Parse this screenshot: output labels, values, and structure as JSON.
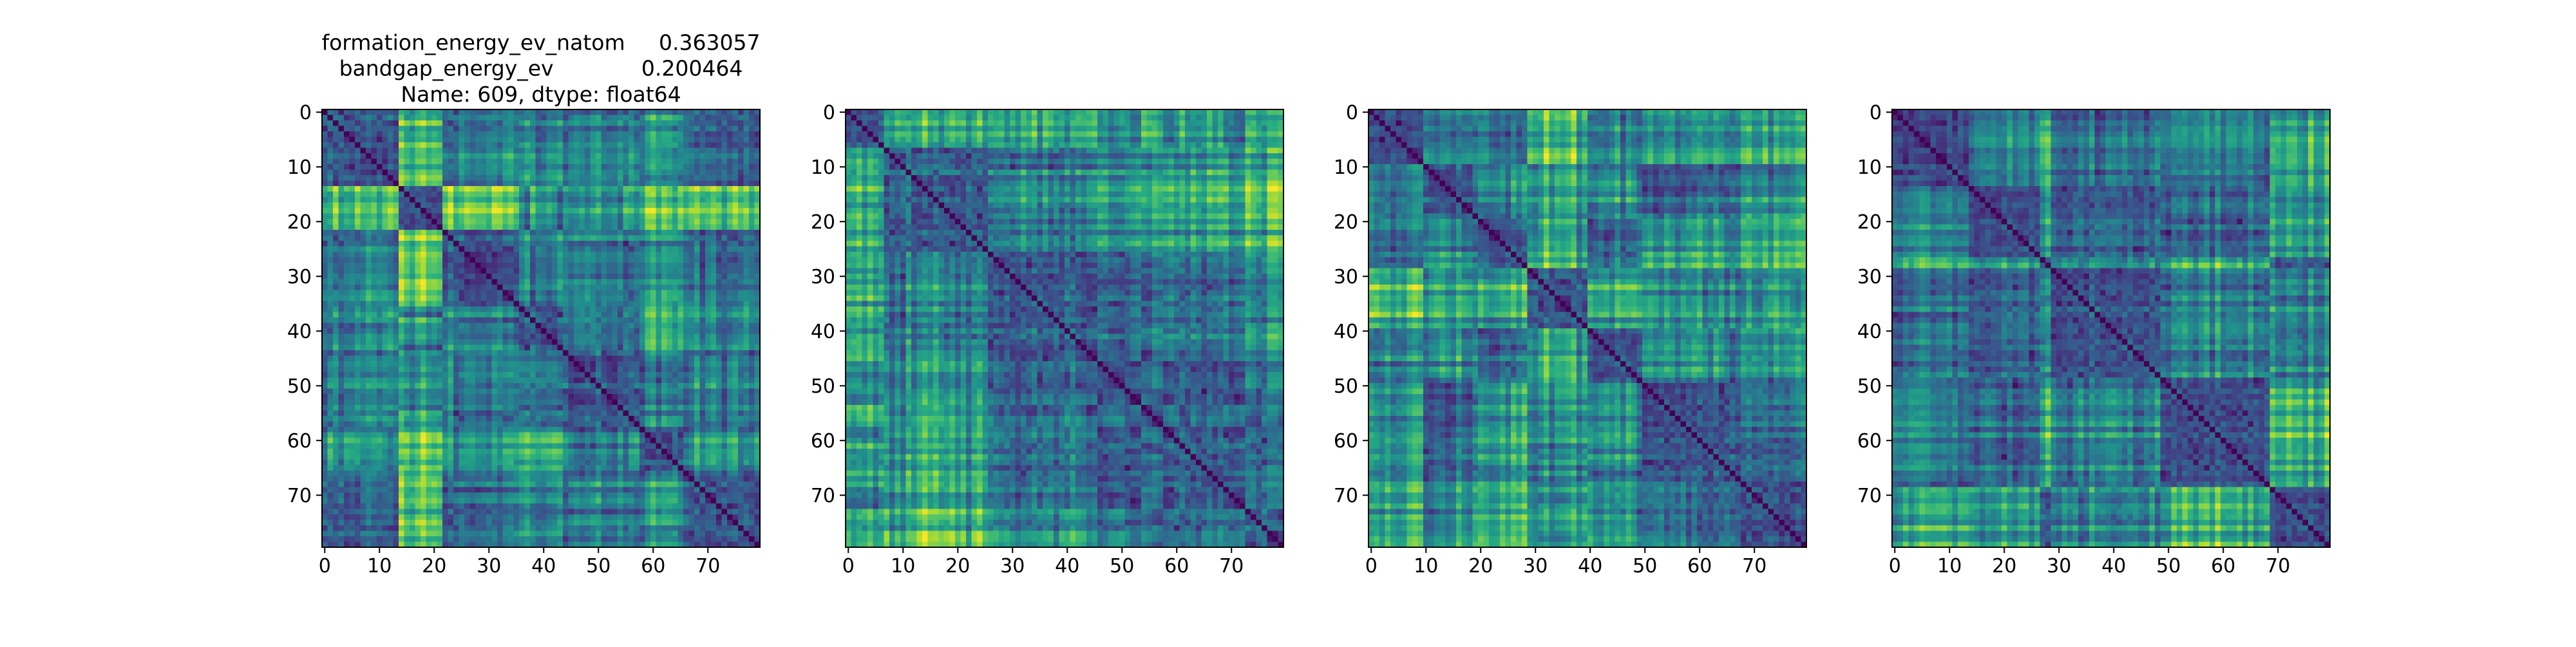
{
  "chart_data": [
    {
      "type": "heatmap",
      "title_lines": [
        "formation_energy_ev_natom     0.363057",
        "bandgap_energy_ev             0.200464",
        "Name: 609, dtype: float64"
      ],
      "rows": 80,
      "cols": 80,
      "xticks": [
        0,
        10,
        20,
        30,
        40,
        50,
        60,
        70
      ],
      "yticks": [
        0,
        10,
        20,
        30,
        40,
        50,
        60,
        70
      ],
      "colormap": "viridis",
      "diagonal_value": 0,
      "block_breaks": [
        14,
        22,
        36,
        44,
        58,
        66
      ],
      "seed": 11
    },
    {
      "type": "heatmap",
      "title_lines": [],
      "rows": 80,
      "cols": 80,
      "xticks": [
        0,
        10,
        20,
        30,
        40,
        50,
        60,
        70
      ],
      "yticks": [
        0,
        10,
        20,
        30,
        40,
        50,
        60,
        70
      ],
      "colormap": "viridis",
      "diagonal_value": 0,
      "block_breaks": [
        7,
        26,
        55,
        73
      ],
      "seed": 23
    },
    {
      "type": "heatmap",
      "title_lines": [],
      "rows": 80,
      "cols": 80,
      "xticks": [
        0,
        10,
        20,
        30,
        40,
        50,
        60,
        70
      ],
      "yticks": [
        0,
        10,
        20,
        30,
        40,
        50,
        60,
        70
      ],
      "colormap": "viridis",
      "diagonal_value": 0,
      "block_breaks": [
        10,
        20,
        29,
        40,
        50,
        66
      ],
      "seed": 37
    },
    {
      "type": "heatmap",
      "title_lines": [],
      "rows": 80,
      "cols": 80,
      "xticks": [
        0,
        10,
        20,
        30,
        40,
        50,
        60,
        70
      ],
      "yticks": [
        0,
        10,
        20,
        30,
        40,
        50,
        60,
        70
      ],
      "colormap": "viridis",
      "diagonal_value": 0,
      "block_breaks": [
        14,
        27,
        29,
        49,
        69
      ],
      "seed": 53
    }
  ]
}
